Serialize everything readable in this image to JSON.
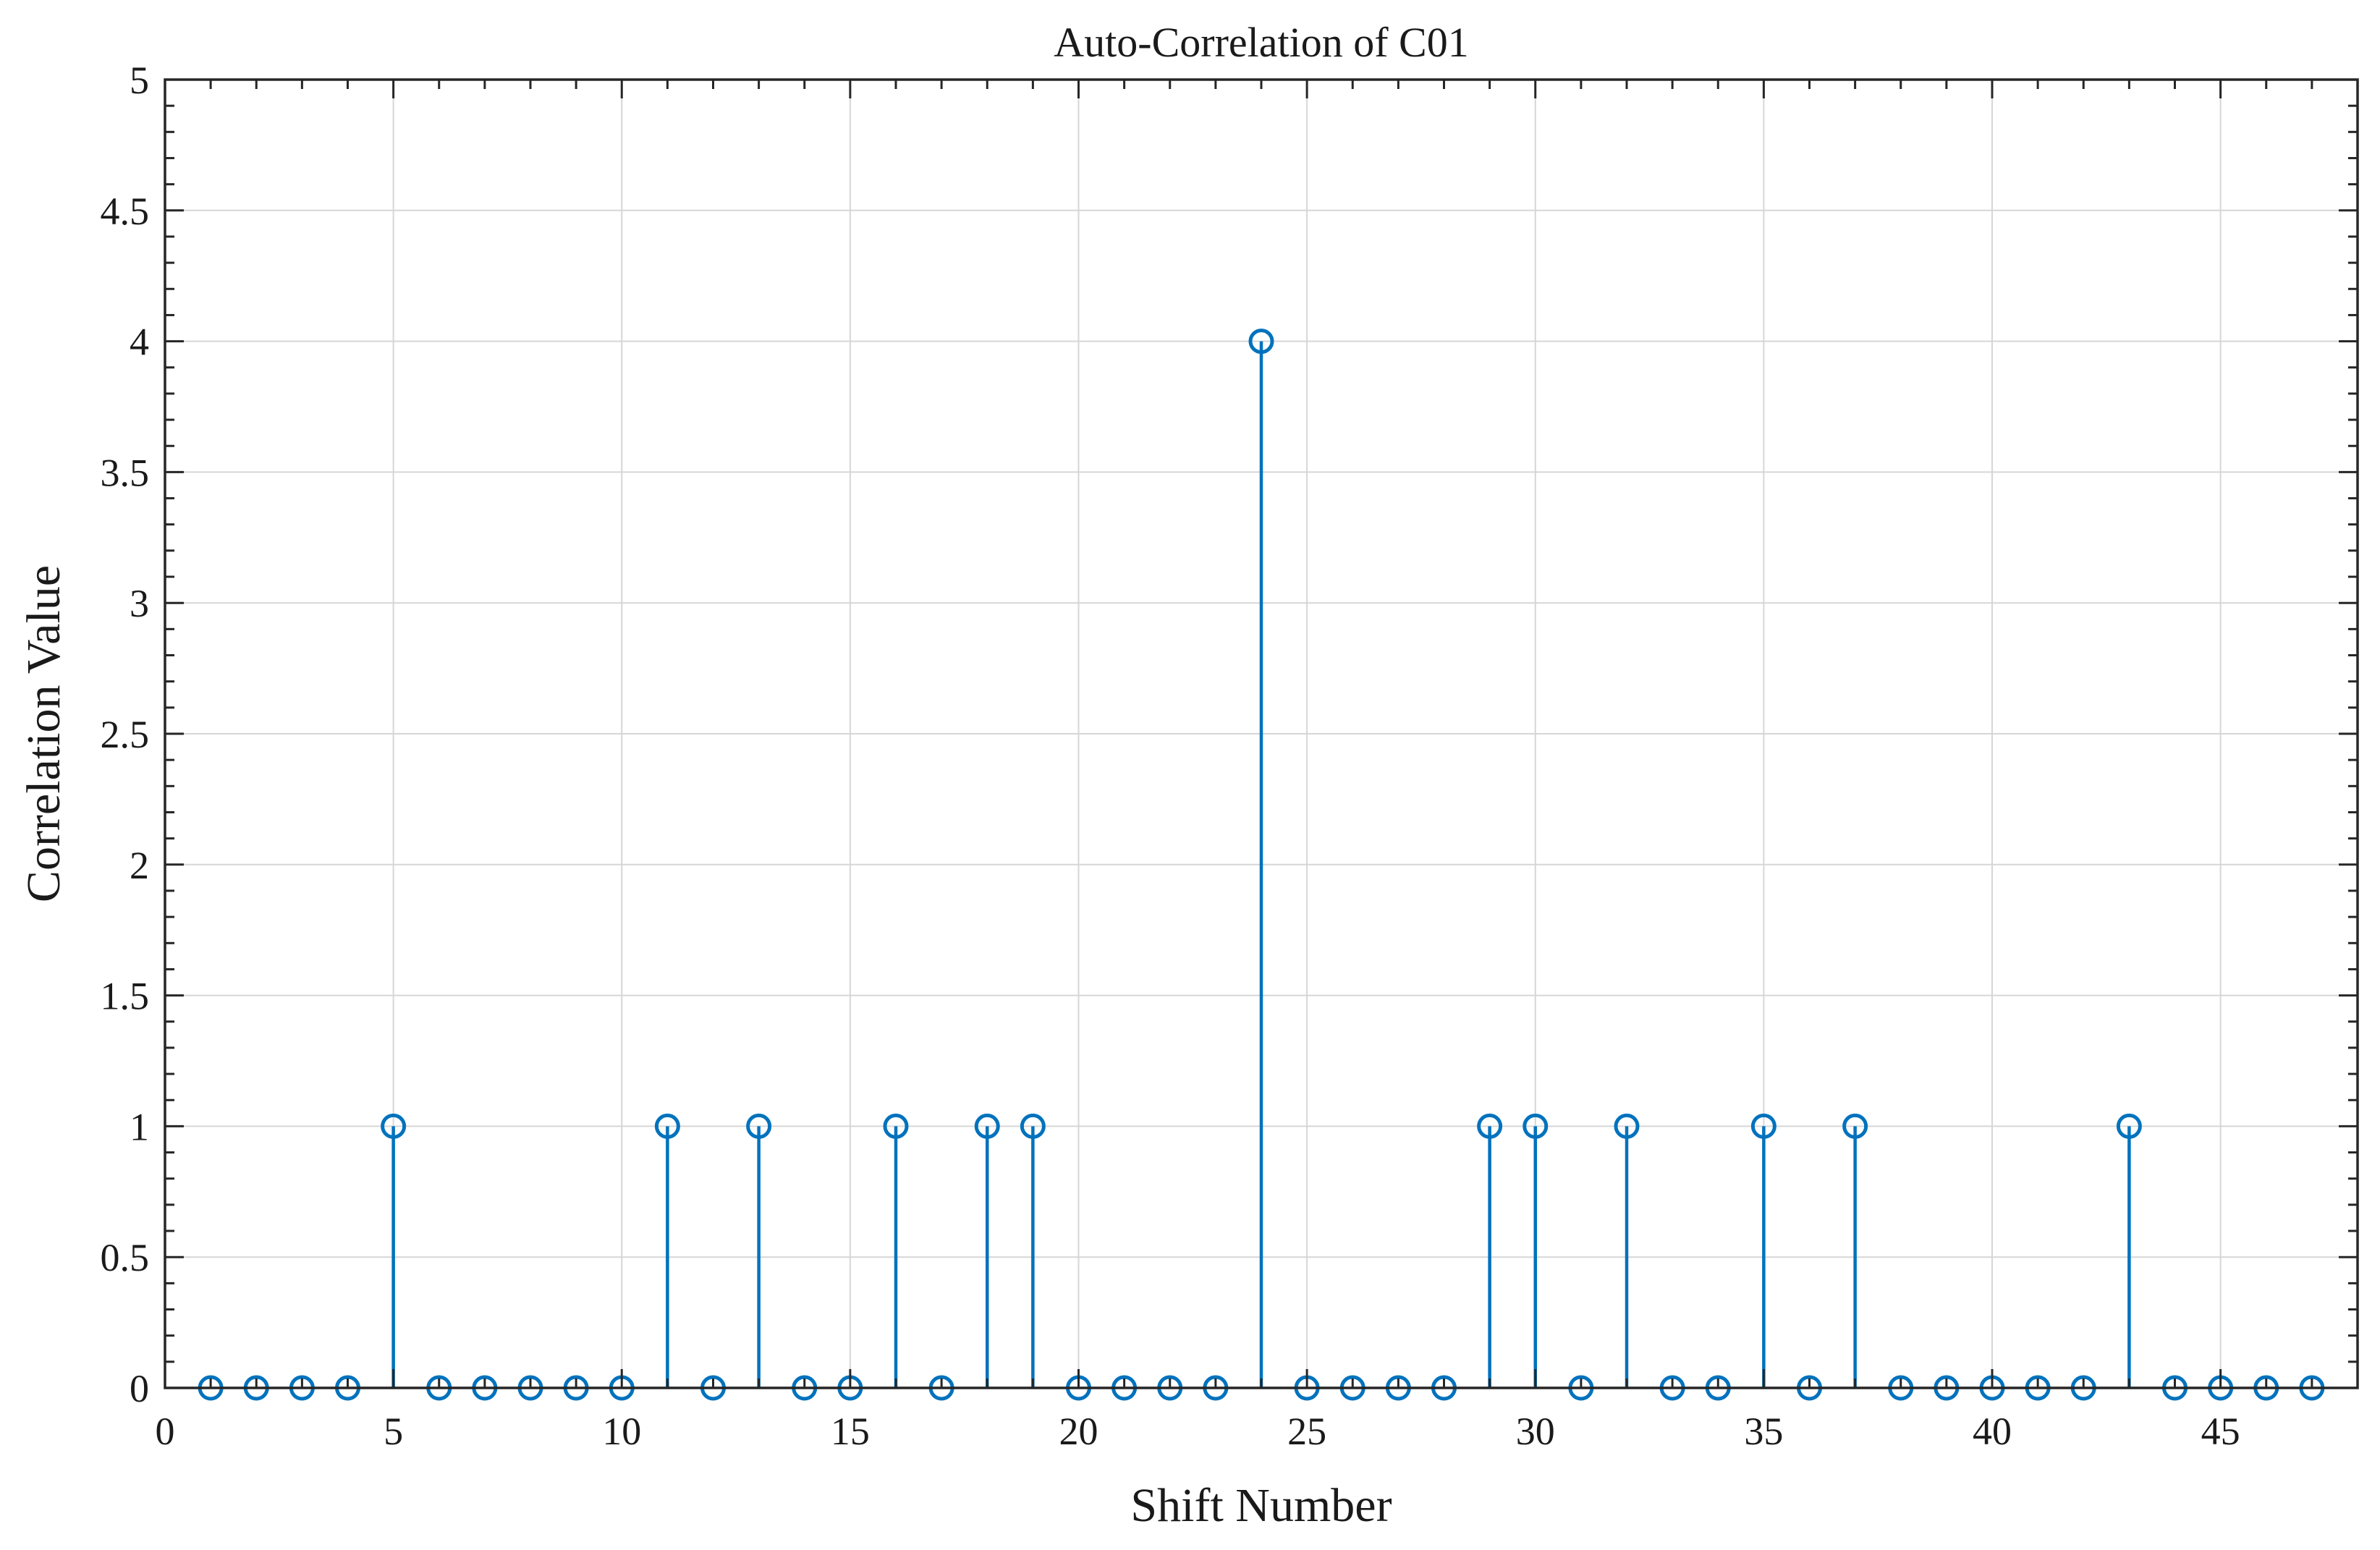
{
  "chart_data": {
    "type": "stem",
    "title": "Auto-Correlation of C01",
    "xlabel": "Shift Number",
    "ylabel": "Correlation Value",
    "xlim": [
      0,
      48
    ],
    "ylim": [
      0,
      5
    ],
    "x_ticks": [
      0,
      5,
      10,
      15,
      20,
      25,
      30,
      35,
      40,
      45
    ],
    "y_ticks": [
      0,
      0.5,
      1,
      1.5,
      2,
      2.5,
      3,
      3.5,
      4,
      4.5,
      5
    ],
    "x_tick_labels": [
      "0",
      "5",
      "10",
      "15",
      "20",
      "25",
      "30",
      "35",
      "40",
      "45"
    ],
    "y_tick_labels": [
      "0",
      "0.5",
      "1",
      "1.5",
      "2",
      "2.5",
      "3",
      "3.5",
      "4",
      "4.5",
      "5"
    ],
    "grid": true,
    "marker": "circle-open",
    "series_color": "#0072BD",
    "x": [
      1,
      2,
      3,
      4,
      5,
      6,
      7,
      8,
      9,
      10,
      11,
      12,
      13,
      14,
      15,
      16,
      17,
      18,
      19,
      20,
      21,
      22,
      23,
      24,
      25,
      26,
      27,
      28,
      29,
      30,
      31,
      32,
      33,
      34,
      35,
      36,
      37,
      38,
      39,
      40,
      41,
      42,
      43,
      44,
      45,
      46,
      47
    ],
    "values": [
      0,
      0,
      0,
      0,
      1,
      0,
      0,
      0,
      0,
      0,
      1,
      0,
      1,
      0,
      0,
      1,
      0,
      1,
      1,
      0,
      0,
      0,
      0,
      4,
      0,
      0,
      0,
      0,
      1,
      1,
      0,
      1,
      0,
      0,
      1,
      0,
      1,
      0,
      0,
      0,
      0,
      0,
      1,
      0,
      0,
      0,
      0
    ]
  }
}
